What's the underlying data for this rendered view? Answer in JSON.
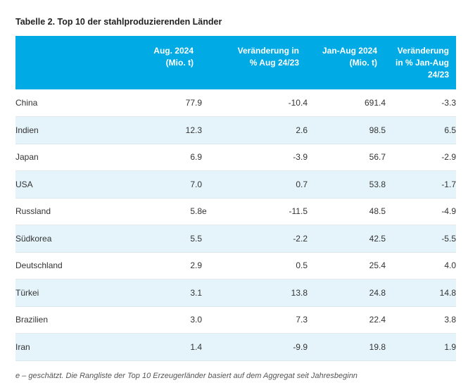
{
  "title": "Tabelle 2. Top 10 der stahlproduzierenden Länder",
  "headers": {
    "country": "",
    "aug_line1": "Aug. 2024",
    "aug_line2": "(Mio. t)",
    "chg_line1": "Veränderung in",
    "chg_line2": "% Aug 24/23",
    "ytd_line1": "Jan-Aug 2024",
    "ytd_line2": "(Mio. t)",
    "ytdchg_line1": "Veränderung",
    "ytdchg_line2": "in % Jan-Aug",
    "ytdchg_line3": "24/23"
  },
  "rows": [
    {
      "country": "China",
      "aug": "77.9",
      "est": "",
      "chg": "-10.4",
      "ytd": "691.4",
      "ytdchg": "-3.3"
    },
    {
      "country": "Indien",
      "aug": "12.3",
      "est": "",
      "chg": "2.6",
      "ytd": "98.5",
      "ytdchg": "6.5"
    },
    {
      "country": "Japan",
      "aug": "6.9",
      "est": "",
      "chg": "-3.9",
      "ytd": "56.7",
      "ytdchg": "-2.9"
    },
    {
      "country": "USA",
      "aug": "7.0",
      "est": "",
      "chg": "0.7",
      "ytd": "53.8",
      "ytdchg": "-1.7"
    },
    {
      "country": "Russland",
      "aug": "5.8",
      "est": "e",
      "chg": "-11.5",
      "ytd": "48.5",
      "ytdchg": "-4.9"
    },
    {
      "country": "Südkorea",
      "aug": "5.5",
      "est": "",
      "chg": "-2.2",
      "ytd": "42.5",
      "ytdchg": "-5.5"
    },
    {
      "country": "Deutschland",
      "aug": "2.9",
      "est": "",
      "chg": "0.5",
      "ytd": "25.4",
      "ytdchg": "4.0"
    },
    {
      "country": "Türkei",
      "aug": "3.1",
      "est": "",
      "chg": "13.8",
      "ytd": "24.8",
      "ytdchg": "14.8"
    },
    {
      "country": "Brazilien",
      "aug": "3.0",
      "est": "",
      "chg": "7.3",
      "ytd": "22.4",
      "ytdchg": "3.8"
    },
    {
      "country": "Iran",
      "aug": "1.4",
      "est": "",
      "chg": "-9.9",
      "ytd": "19.8",
      "ytdchg": "1.9"
    }
  ],
  "footnote": "e – geschätzt. Die Rangliste der Top 10 Erzeugerländer basiert auf dem Aggregat seit Jahresbeginn",
  "colors": {
    "header_bg": "#00aae4",
    "row_alt_bg": "#e5f4fa"
  }
}
